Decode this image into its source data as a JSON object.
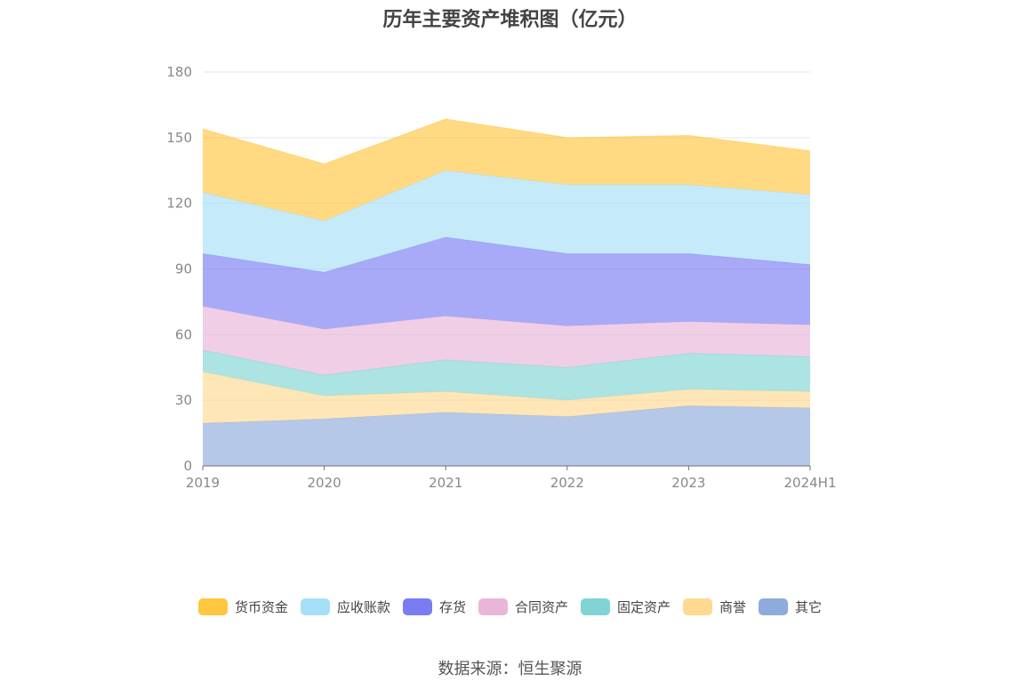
{
  "chart_data": {
    "type": "area",
    "title": "历年主要资产堆积图（亿元）",
    "categories": [
      "2019",
      "2020",
      "2021",
      "2022",
      "2023",
      "2024H1"
    ],
    "ylim": [
      0,
      180
    ],
    "yticks": [
      0,
      30,
      60,
      90,
      120,
      150,
      180
    ],
    "grid": true,
    "legend_position": "bottom",
    "stacked": true,
    "series": [
      {
        "name": "其它",
        "color": "#8faadc",
        "values": [
          19.5,
          21.5,
          24.5,
          22.5,
          27.5,
          26.5
        ]
      },
      {
        "name": "商誉",
        "color": "#ffd990",
        "values": [
          23.5,
          10.5,
          9.5,
          7.5,
          7.5,
          7.5
        ]
      },
      {
        "name": "固定资产",
        "color": "#80d4d4",
        "values": [
          10,
          9.5,
          14.5,
          15,
          16.5,
          16
        ]
      },
      {
        "name": "合同资产",
        "color": "#e8b6d8",
        "values": [
          20,
          21,
          20,
          19,
          14.5,
          14.5
        ]
      },
      {
        "name": "存货",
        "color": "#7b7cf2",
        "values": [
          24,
          26,
          36,
          33,
          31,
          27.5
        ]
      },
      {
        "name": "应收账款",
        "color": "#a6dff8",
        "values": [
          28,
          23.5,
          30.5,
          31.5,
          31.5,
          32
        ]
      },
      {
        "name": "货币资金",
        "color": "#ffc640",
        "values": [
          29,
          26,
          23.5,
          21.5,
          22.5,
          20
        ]
      }
    ]
  },
  "legend_order": [
    "货币资金",
    "应收账款",
    "存货",
    "合同资产",
    "固定资产",
    "商誉",
    "其它"
  ],
  "source": "数据来源：恒生聚源"
}
